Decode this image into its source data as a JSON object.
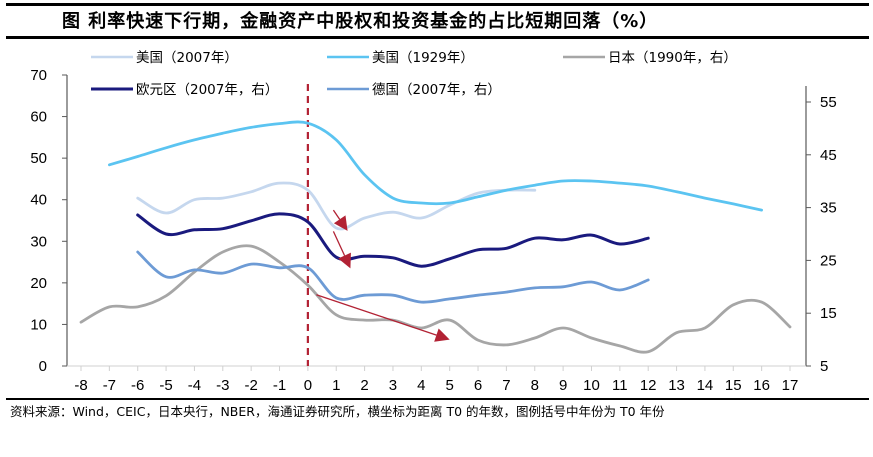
{
  "title": "图  利率快速下行期，金融资产中股权和投资基金的占比短期回落（%）",
  "source": "资料来源：Wind，CEIC，日本央行，NBER，海通证券研究所，横坐标为距离 T0 的年数，图例括号中年份为 T0 年份",
  "chart_data": {
    "type": "line",
    "title": "利率快速下行期，金融资产中股权和投资基金的占比短期回落（%）",
    "xlabel": "",
    "ylabel": "",
    "x": [
      -8,
      -7,
      -6,
      -5,
      -4,
      -3,
      -2,
      -1,
      0,
      1,
      2,
      3,
      4,
      5,
      6,
      7,
      8,
      9,
      10,
      11,
      12,
      13,
      14,
      15,
      16,
      17
    ],
    "xticks": [
      "-8",
      "-7",
      "-6",
      "-5",
      "-4",
      "-3",
      "-2",
      "-1",
      "0",
      "1",
      "2",
      "3",
      "4",
      "5",
      "6",
      "7",
      "8",
      "9",
      "10",
      "11",
      "12",
      "13",
      "14",
      "15",
      "16",
      "17"
    ],
    "ylim_left": [
      0,
      70
    ],
    "yticks_left": [
      "0",
      "10",
      "20",
      "30",
      "40",
      "50",
      "60",
      "70"
    ],
    "ylim_right": [
      5,
      60
    ],
    "yticks_right": [
      "5",
      "15",
      "25",
      "35",
      "45",
      "55"
    ],
    "grid": false,
    "legend_placement": "top",
    "t0_marker": {
      "x": 0,
      "style": "dashed",
      "color": "#b22234"
    },
    "series": [
      {
        "name": "美国（2007年）",
        "axis": "left",
        "color": "#c5d7ee",
        "x": [
          -6,
          -5,
          -4,
          -3,
          -2,
          -1,
          0,
          1,
          2,
          3,
          4,
          5,
          6,
          7,
          8
        ],
        "values": [
          40.4,
          36.8,
          40.0,
          40.4,
          41.9,
          44.0,
          42.3,
          33.2,
          35.6,
          37.0,
          35.6,
          38.7,
          41.6,
          42.3,
          42.3
        ]
      },
      {
        "name": "美国（1929年）",
        "axis": "left",
        "color": "#5bc4f1",
        "x": [
          -7,
          -6,
          -5,
          -4,
          -3,
          -2,
          -1,
          0,
          1,
          2,
          3,
          4,
          5,
          6,
          7,
          8,
          9,
          10,
          11,
          12,
          13,
          14,
          15,
          16
        ],
        "values": [
          48.4,
          50.4,
          52.5,
          54.4,
          56.0,
          57.4,
          58.3,
          58.4,
          54.4,
          46.0,
          40.4,
          39.2,
          39.2,
          40.7,
          42.3,
          43.5,
          44.5,
          44.5,
          44.0,
          43.3,
          41.9,
          40.4,
          39.0,
          37.5
        ]
      },
      {
        "name": "日本（1990年，右）",
        "axis": "right",
        "color": "#a6a6a6",
        "x": [
          -8,
          -7,
          -6,
          -5,
          -4,
          -3,
          -2,
          -1,
          0,
          1,
          2,
          3,
          4,
          5,
          6,
          7,
          8,
          9,
          10,
          11,
          12,
          13,
          14,
          15,
          16,
          17
        ],
        "values": [
          13.3,
          16.2,
          16.2,
          18.3,
          22.8,
          26.6,
          27.7,
          24.7,
          20.3,
          14.7,
          13.7,
          13.7,
          12.2,
          13.7,
          9.9,
          9.0,
          10.3,
          12.2,
          10.3,
          8.8,
          7.7,
          11.3,
          12.2,
          16.6,
          17.1,
          12.4
        ]
      },
      {
        "name": "欧元区（2007年，右）",
        "axis": "right",
        "color": "#1a1a7e",
        "x": [
          -6,
          -5,
          -4,
          -3,
          -2,
          -1,
          0,
          1,
          2,
          3,
          4,
          5,
          6,
          7,
          8,
          9,
          10,
          11,
          12
        ],
        "values": [
          33.6,
          30.0,
          30.8,
          31.0,
          32.5,
          33.8,
          32.3,
          25.6,
          25.8,
          25.5,
          23.9,
          25.3,
          27.0,
          27.3,
          29.2,
          28.9,
          29.8,
          28.1,
          29.2
        ]
      },
      {
        "name": "德国（2007年，右）",
        "axis": "right",
        "color": "#6d9bd5",
        "x": [
          -6,
          -5,
          -4,
          -3,
          -2,
          -1,
          0,
          1,
          2,
          3,
          4,
          5,
          6,
          7,
          8,
          9,
          10,
          11,
          12
        ],
        "values": [
          26.6,
          21.9,
          23.2,
          22.6,
          24.3,
          23.6,
          23.6,
          17.9,
          18.4,
          18.4,
          17.1,
          17.7,
          18.4,
          19.0,
          19.8,
          20.0,
          20.9,
          19.4,
          21.3
        ]
      }
    ],
    "annotations": [
      {
        "type": "arrow",
        "series": "美国（2007年）",
        "from_x": 0.9,
        "from_value": 37.5,
        "to_x": 1.4,
        "to_value": 32.5,
        "axis": "left",
        "color": "#b22234"
      },
      {
        "type": "arrow",
        "series": "欧元区（2007年，右）",
        "from_x": 0.9,
        "from_value": 30.5,
        "to_x": 1.5,
        "to_value": 23.5,
        "axis": "right",
        "color": "#b22234"
      },
      {
        "type": "arrow",
        "series": "日本（1990年，右）",
        "from_x": 0.3,
        "from_value": 18.5,
        "to_x": 5.0,
        "to_value": 10.0,
        "axis": "right",
        "color": "#b22234"
      }
    ]
  }
}
